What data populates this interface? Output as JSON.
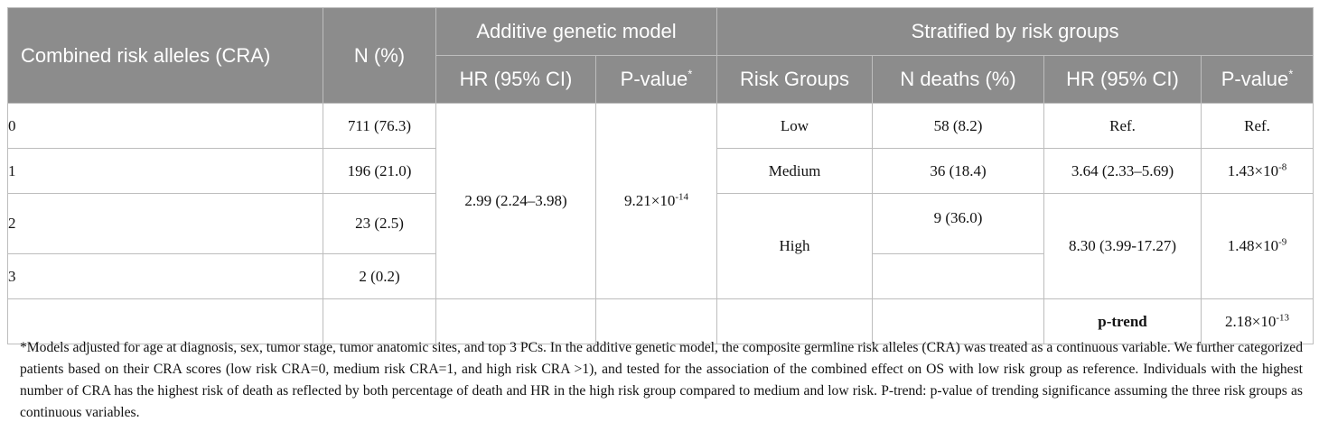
{
  "headers": {
    "cra": "Combined risk alleles (CRA)",
    "n_pct": "N (%)",
    "additive": "Additive genetic model",
    "stratified": "Stratified by risk groups",
    "hr_ci": "HR (95% CI)",
    "pvalue": "P-value",
    "star": "*",
    "risk_groups": "Risk Groups",
    "n_deaths": "N deaths (%)",
    "hr_ci2": "HR (95% CI)",
    "pvalue2": "P-value"
  },
  "rows": [
    {
      "cra": "0",
      "n": "711 (76.3)"
    },
    {
      "cra": "1",
      "n": "196 (21.0)"
    },
    {
      "cra": "2",
      "n": "23 (2.5)"
    },
    {
      "cra": "3",
      "n": "2 (0.2)"
    }
  ],
  "additive": {
    "hr": "2.99 (2.24–3.98)",
    "p_base": "9.21×10",
    "p_exp": "-14"
  },
  "groups": {
    "low": {
      "name": "Low",
      "deaths": "58 (8.2)",
      "hr": "Ref.",
      "p": "Ref."
    },
    "medium": {
      "name": "Medium",
      "deaths": "36 (18.4)",
      "hr": "3.64 (2.33–5.69)",
      "p_base": "1.43×10",
      "p_exp": "-8"
    },
    "high": {
      "name": "High",
      "deaths": "9 (36.0)",
      "hr": "8.30 (3.99-17.27)",
      "p_base": "1.48×10",
      "p_exp": "-9"
    }
  },
  "trend": {
    "label": "p-trend",
    "p_base": "2.18×10",
    "p_exp": "-13"
  },
  "footnote": "*Models adjusted for age at diagnosis, sex, tumor stage, tumor anatomic sites, and top 3 PCs. In the additive genetic model, the composite germline risk alleles (CRA) was treated as a continuous variable. We further categorized patients based on their CRA scores (low risk CRA=0, medium risk CRA=1, and high risk CRA >1), and tested for the association of the combined effect on OS with low risk group as reference. Individuals with the highest number of CRA has the highest risk of death as reflected by both percentage of death and HR in the high risk group compared to medium and low risk. P-trend: p-value of trending significance assuming the three risk groups as continuous variables."
}
